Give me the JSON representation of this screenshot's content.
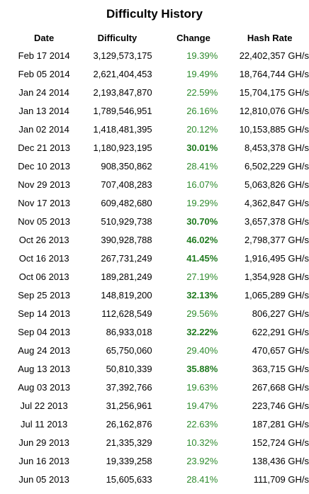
{
  "title": "Difficulty History",
  "columns": {
    "date": "Date",
    "difficulty": "Difficulty",
    "change": "Change",
    "hashrate": "Hash Rate"
  },
  "colors": {
    "change_text": "#2e8b2e",
    "change_strong": "#1f7a1f"
  },
  "rows": [
    {
      "date": "Feb 17 2014",
      "difficulty": "3,129,573,175",
      "change": "19.39%",
      "bold": false,
      "hashrate": "22,402,357 GH/s"
    },
    {
      "date": "Feb 05 2014",
      "difficulty": "2,621,404,453",
      "change": "19.49%",
      "bold": false,
      "hashrate": "18,764,744 GH/s"
    },
    {
      "date": "Jan 24 2014",
      "difficulty": "2,193,847,870",
      "change": "22.59%",
      "bold": false,
      "hashrate": "15,704,175 GH/s"
    },
    {
      "date": "Jan 13 2014",
      "difficulty": "1,789,546,951",
      "change": "26.16%",
      "bold": false,
      "hashrate": "12,810,076 GH/s"
    },
    {
      "date": "Jan 02 2014",
      "difficulty": "1,418,481,395",
      "change": "20.12%",
      "bold": false,
      "hashrate": "10,153,885 GH/s"
    },
    {
      "date": "Dec 21 2013",
      "difficulty": "1,180,923,195",
      "change": "30.01%",
      "bold": true,
      "hashrate": "8,453,378 GH/s"
    },
    {
      "date": "Dec 10 2013",
      "difficulty": "908,350,862",
      "change": "28.41%",
      "bold": false,
      "hashrate": "6,502,229 GH/s"
    },
    {
      "date": "Nov 29 2013",
      "difficulty": "707,408,283",
      "change": "16.07%",
      "bold": false,
      "hashrate": "5,063,826 GH/s"
    },
    {
      "date": "Nov 17 2013",
      "difficulty": "609,482,680",
      "change": "19.29%",
      "bold": false,
      "hashrate": "4,362,847 GH/s"
    },
    {
      "date": "Nov 05 2013",
      "difficulty": "510,929,738",
      "change": "30.70%",
      "bold": true,
      "hashrate": "3,657,378 GH/s"
    },
    {
      "date": "Oct 26 2013",
      "difficulty": "390,928,788",
      "change": "46.02%",
      "bold": true,
      "hashrate": "2,798,377 GH/s"
    },
    {
      "date": "Oct 16 2013",
      "difficulty": "267,731,249",
      "change": "41.45%",
      "bold": true,
      "hashrate": "1,916,495 GH/s"
    },
    {
      "date": "Oct 06 2013",
      "difficulty": "189,281,249",
      "change": "27.19%",
      "bold": false,
      "hashrate": "1,354,928 GH/s"
    },
    {
      "date": "Sep 25 2013",
      "difficulty": "148,819,200",
      "change": "32.13%",
      "bold": true,
      "hashrate": "1,065,289 GH/s"
    },
    {
      "date": "Sep 14 2013",
      "difficulty": "112,628,549",
      "change": "29.56%",
      "bold": false,
      "hashrate": "806,227 GH/s"
    },
    {
      "date": "Sep 04 2013",
      "difficulty": "86,933,018",
      "change": "32.22%",
      "bold": true,
      "hashrate": "622,291 GH/s"
    },
    {
      "date": "Aug 24 2013",
      "difficulty": "65,750,060",
      "change": "29.40%",
      "bold": false,
      "hashrate": "470,657 GH/s"
    },
    {
      "date": "Aug 13 2013",
      "difficulty": "50,810,339",
      "change": "35.88%",
      "bold": true,
      "hashrate": "363,715 GH/s"
    },
    {
      "date": "Aug 03 2013",
      "difficulty": "37,392,766",
      "change": "19.63%",
      "bold": false,
      "hashrate": "267,668 GH/s"
    },
    {
      "date": "Jul 22 2013",
      "difficulty": "31,256,961",
      "change": "19.47%",
      "bold": false,
      "hashrate": "223,746 GH/s"
    },
    {
      "date": "Jul 11 2013",
      "difficulty": "26,162,876",
      "change": "22.63%",
      "bold": false,
      "hashrate": "187,281 GH/s"
    },
    {
      "date": "Jun 29 2013",
      "difficulty": "21,335,329",
      "change": "10.32%",
      "bold": false,
      "hashrate": "152,724 GH/s"
    },
    {
      "date": "Jun 16 2013",
      "difficulty": "19,339,258",
      "change": "23.92%",
      "bold": false,
      "hashrate": "138,436 GH/s"
    },
    {
      "date": "Jun 05 2013",
      "difficulty": "15,605,633",
      "change": "28.41%",
      "bold": false,
      "hashrate": "111,709 GH/s"
    }
  ]
}
